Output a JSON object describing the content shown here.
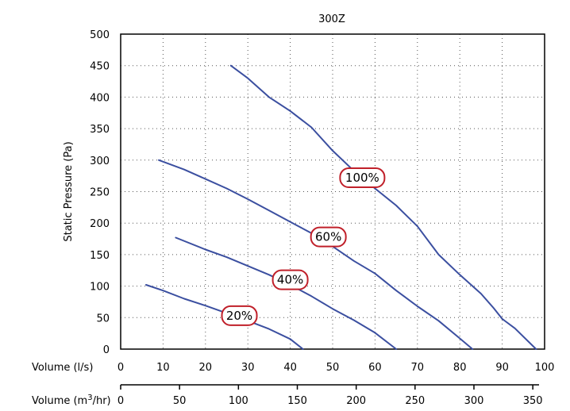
{
  "chart_data": {
    "type": "line",
    "title": "300Z",
    "ylabel": "Static Pressure (Pa)",
    "ylim": [
      0,
      500
    ],
    "yticks": [
      "0",
      "50",
      "100",
      "150",
      "200",
      "250",
      "300",
      "350",
      "400",
      "450",
      "500"
    ],
    "xlim": [
      0,
      100
    ],
    "grid": true,
    "x_axis_primary": {
      "label": "Volume (l/s)",
      "ticks": [
        "0",
        "10",
        "20",
        "30",
        "40",
        "50",
        "60",
        "70",
        "80",
        "90",
        "100"
      ]
    },
    "x_axis_secondary": {
      "label_prefix": "Volume (m",
      "label_sup": "3",
      "label_suffix": "/hr)",
      "ticks": [
        "0",
        "50",
        "100",
        "150",
        "200",
        "250",
        "300",
        "350"
      ],
      "tick_values_lps": [
        0,
        13.89,
        27.78,
        41.67,
        55.56,
        69.44,
        83.33,
        97.22
      ]
    },
    "line_color": "#3b4fa0",
    "label_color": "#c0202a",
    "series": [
      {
        "name": "100%",
        "label_pos": [
          57,
          272
        ],
        "points": [
          [
            26,
            450
          ],
          [
            30,
            430
          ],
          [
            35,
            400
          ],
          [
            40,
            378
          ],
          [
            45,
            352
          ],
          [
            50,
            315
          ],
          [
            55,
            283
          ],
          [
            60,
            255
          ],
          [
            65,
            228
          ],
          [
            70,
            195
          ],
          [
            75,
            150
          ],
          [
            80,
            118
          ],
          [
            85,
            88
          ],
          [
            88,
            65
          ],
          [
            90,
            48
          ],
          [
            93,
            33
          ],
          [
            98,
            0
          ]
        ]
      },
      {
        "name": "60%",
        "label_pos": [
          49,
          178
        ],
        "points": [
          [
            9,
            300
          ],
          [
            15,
            285
          ],
          [
            20,
            270
          ],
          [
            25,
            255
          ],
          [
            30,
            238
          ],
          [
            35,
            220
          ],
          [
            40,
            202
          ],
          [
            45,
            184
          ],
          [
            50,
            163
          ],
          [
            55,
            140
          ],
          [
            60,
            120
          ],
          [
            65,
            93
          ],
          [
            70,
            68
          ],
          [
            75,
            45
          ],
          [
            80,
            17
          ],
          [
            83,
            0
          ]
        ]
      },
      {
        "name": "40%",
        "label_pos": [
          40,
          110
        ],
        "points": [
          [
            13,
            177
          ],
          [
            20,
            158
          ],
          [
            25,
            146
          ],
          [
            30,
            132
          ],
          [
            35,
            118
          ],
          [
            40,
            102
          ],
          [
            45,
            84
          ],
          [
            50,
            64
          ],
          [
            55,
            46
          ],
          [
            60,
            26
          ],
          [
            65,
            0
          ]
        ]
      },
      {
        "name": "20%",
        "label_pos": [
          28,
          53
        ],
        "points": [
          [
            6,
            102
          ],
          [
            10,
            93
          ],
          [
            15,
            80
          ],
          [
            20,
            69
          ],
          [
            25,
            57
          ],
          [
            30,
            45
          ],
          [
            35,
            32
          ],
          [
            40,
            16
          ],
          [
            43,
            0
          ]
        ]
      }
    ]
  }
}
